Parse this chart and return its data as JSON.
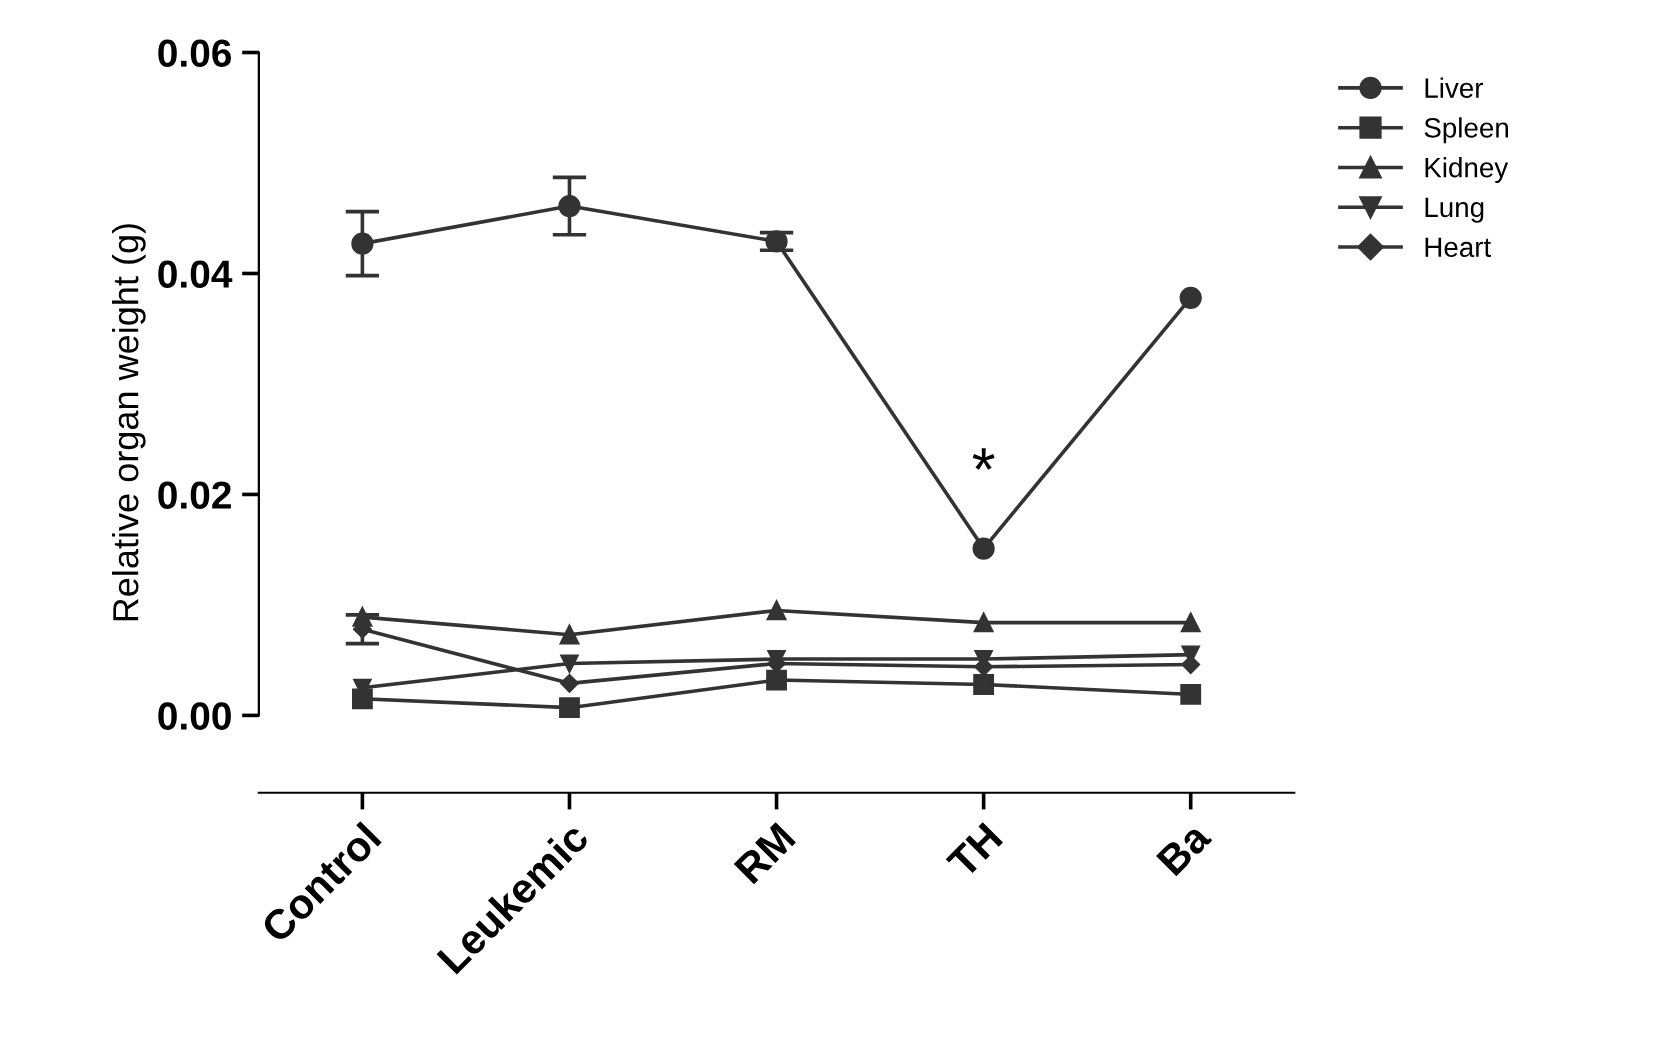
{
  "chart_data": {
    "type": "line",
    "ylabel": "Relative organ weight (g)",
    "categories": [
      "Control",
      "Leukemic",
      "RM",
      "TH",
      "Ba"
    ],
    "ylim": [
      -0.007,
      0.06
    ],
    "yticks": [
      {
        "value": 0,
        "label": "0.00"
      },
      {
        "value": 0.02,
        "label": "0.02"
      },
      {
        "value": 0.04,
        "label": "0.04"
      },
      {
        "value": 0.06,
        "label": "0.06"
      }
    ],
    "grid": false,
    "legend": "top right",
    "line_style": "solid",
    "annotations": [
      "*"
    ],
    "series": [
      {
        "name": "Liver",
        "color": "#333333",
        "marker": "circle",
        "values": [
          0.0427,
          0.0461,
          0.0429,
          0.0151,
          0.0378
        ],
        "errors": [
          0.0029,
          0.0026,
          0.0008,
          null,
          null
        ]
      },
      {
        "name": "Spleen",
        "color": "#333333",
        "marker": "square",
        "values": [
          0.0015,
          0.0007,
          0.0032,
          0.0028,
          0.0019
        ]
      },
      {
        "name": "Kidney",
        "color": "#333333",
        "marker": "triangle",
        "values": [
          0.0089,
          0.0073,
          0.0095,
          0.0084,
          0.0084
        ]
      },
      {
        "name": "Lung",
        "color": "#333333",
        "marker": "triangle_down",
        "values": [
          0.0025,
          0.0047,
          0.0051,
          0.0051,
          0.0055
        ]
      },
      {
        "name": "Heart",
        "color": "#333333",
        "marker": "diamond",
        "values": [
          0.0078,
          0.0029,
          0.0047,
          0.0044,
          0.0046
        ],
        "errors": [
          0.0013,
          null,
          null,
          null,
          null
        ]
      }
    ]
  }
}
